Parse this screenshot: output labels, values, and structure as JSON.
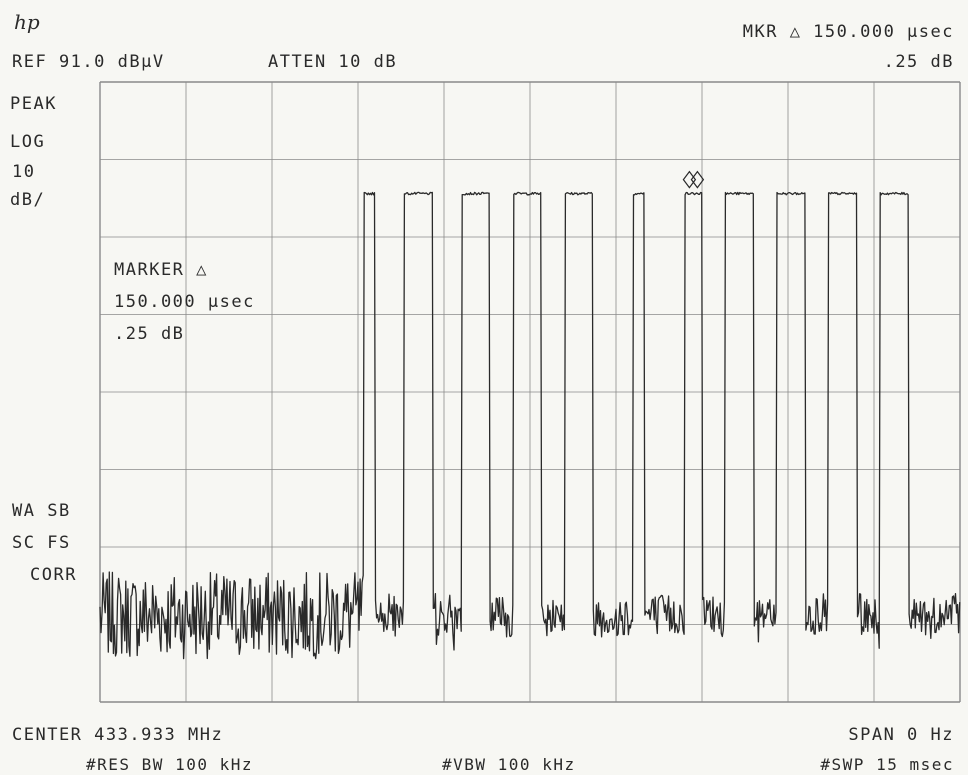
{
  "header": {
    "logo": "hp",
    "ref_level": "REF 91.0 dBµV",
    "attenuation": "ATTEN 10 dB",
    "marker_readout": "MKR △ 150.000 µsec",
    "marker_amplitude": ".25 dB"
  },
  "left_annotations": {
    "detector": "PEAK",
    "scale_type": "LOG",
    "scale_value": "10",
    "scale_unit": "dB/",
    "status_1": "WA SB",
    "status_2": "SC FS",
    "status_3": "CORR"
  },
  "marker_box": {
    "title": "MARKER △",
    "time": "150.000 µsec",
    "amplitude": ".25 dB"
  },
  "footer": {
    "center": "CENTER 433.933 MHz",
    "span": "SPAN 0 Hz",
    "rbw": "#RES BW 100 kHz",
    "vbw": "#VBW 100 kHz",
    "sweep": "#SWP 15 msec"
  },
  "colors": {
    "trace": "#2a2a2a",
    "grid": "#8a8a8a",
    "background": "#f7f7f3"
  },
  "chart_data": {
    "type": "line",
    "xlim": [
      0,
      15
    ],
    "x_unit": "msec",
    "ylim": [
      -9,
      91
    ],
    "y_unit": "dBµV",
    "grid": true,
    "noise_floor": 5,
    "pulse_level": 73,
    "pulses_ms": [
      [
        4.6,
        4.8
      ],
      [
        5.3,
        5.8
      ],
      [
        6.3,
        6.8
      ],
      [
        7.2,
        7.7
      ],
      [
        8.1,
        8.6
      ],
      [
        9.3,
        9.5
      ],
      [
        10.2,
        10.5
      ],
      [
        10.9,
        11.4
      ],
      [
        11.8,
        12.3
      ],
      [
        12.7,
        13.2
      ],
      [
        13.6,
        14.1
      ]
    ],
    "marker_ms": [
      10.35
    ]
  }
}
